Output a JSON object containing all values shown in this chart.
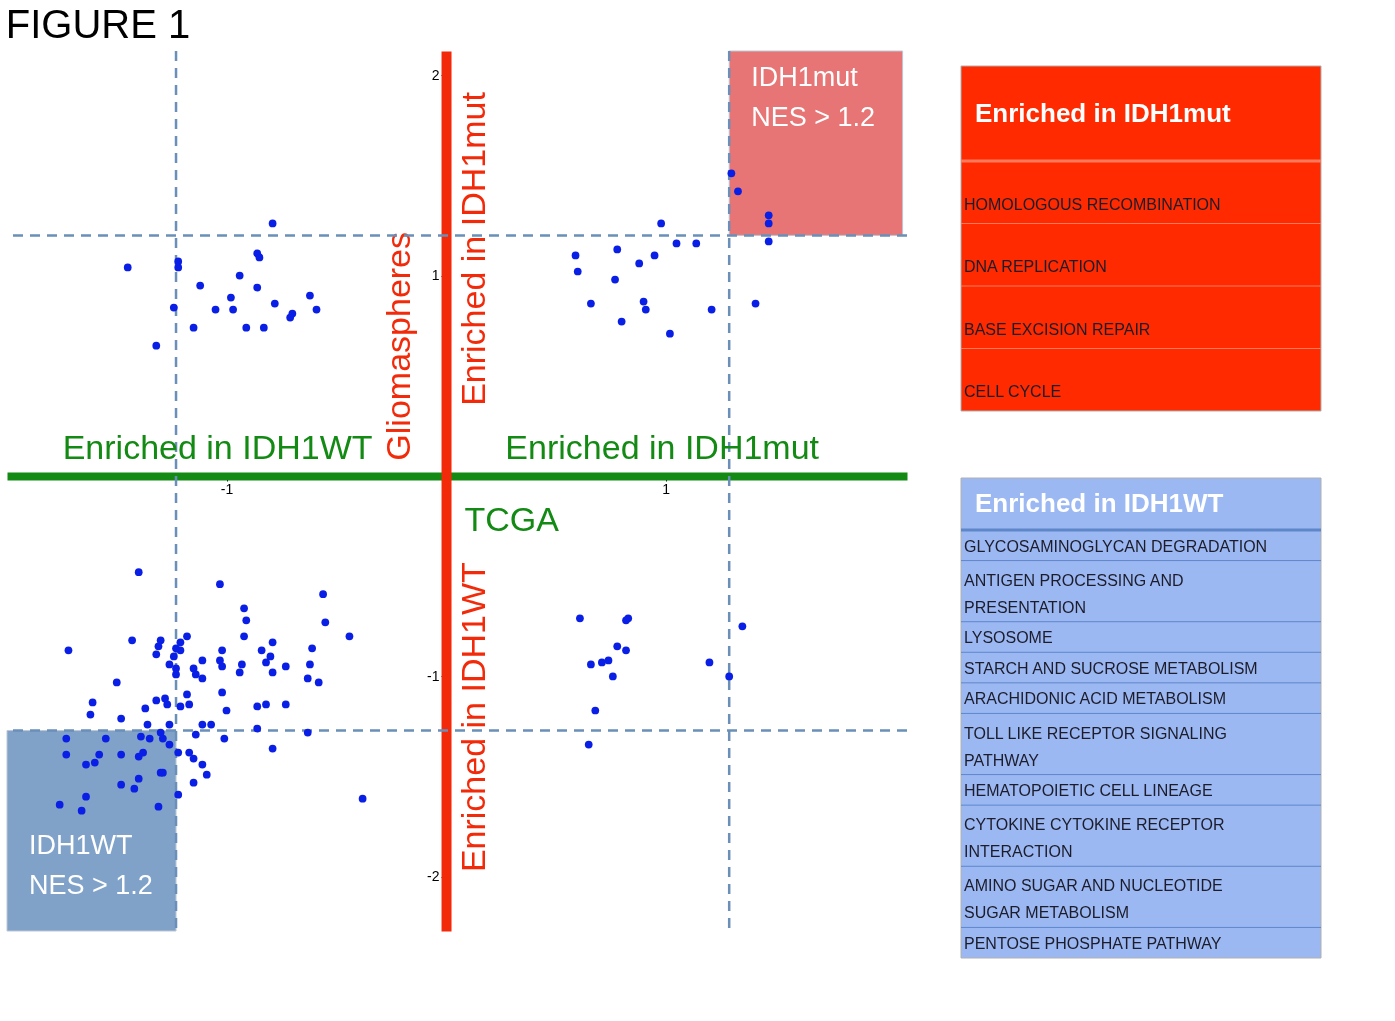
{
  "chart_data": [
    {
      "type": "scatter",
      "title": "FIGURE 1",
      "xlabel": "TCGA",
      "ylabel": "Gliomaspheres",
      "xlim": [
        -2.0,
        2.1
      ],
      "ylim": [
        -2.27,
        2.12
      ],
      "xticks": [
        -1,
        1
      ],
      "yticks": [
        2,
        1,
        -1,
        -2
      ],
      "marker": "circle",
      "series": [
        {
          "color": "#0a1fe6",
          "x": [
            -0.79,
            -0.86,
            -0.85,
            -1.45,
            -1.22,
            -1.22,
            -0.94,
            -1.12,
            -0.86,
            -0.98,
            -0.62,
            -1.24,
            -1.05,
            -0.97,
            -0.78,
            -0.59,
            -0.7,
            -0.71,
            -1.15,
            -0.91,
            -0.83,
            -1.32
          ],
          "values": [
            1.26,
            1.11,
            1.09,
            1.04,
            1.07,
            1.04,
            1.0,
            0.95,
            0.94,
            0.89,
            0.9,
            0.84,
            0.83,
            0.83,
            0.86,
            0.83,
            0.81,
            0.79,
            0.74,
            0.74,
            0.74,
            0.65
          ]
        },
        {
          "color": "#0a1fe6",
          "x": [
            1.3,
            1.33,
            1.47,
            1.47,
            0.98,
            1.47,
            1.05,
            1.14,
            0.59,
            0.78,
            0.88,
            0.95,
            0.6,
            0.77,
            0.66,
            0.9,
            0.91,
            1.41,
            1.21,
            0.8,
            1.02
          ],
          "values": [
            1.51,
            1.42,
            1.3,
            1.26,
            1.26,
            1.17,
            1.16,
            1.16,
            1.1,
            1.13,
            1.06,
            1.1,
            1.02,
            0.98,
            0.86,
            0.87,
            0.83,
            0.86,
            0.83,
            0.77,
            0.71
          ]
        },
        {
          "color": "#0a1fe6",
          "x": [
            0.61,
            0.82,
            0.83,
            1.35,
            0.78,
            0.82,
            0.66,
            0.71,
            0.74,
            1.2,
            0.76,
            1.29,
            0.68,
            0.65
          ],
          "values": [
            -0.71,
            -0.72,
            -0.71,
            -0.75,
            -0.85,
            -0.87,
            -0.94,
            -0.93,
            -0.92,
            -0.93,
            -1.0,
            -1.0,
            -1.17,
            -1.34
          ]
        },
        {
          "color": "#0a1fe6",
          "x": [
            -1.4,
            -1.03,
            -0.56,
            -0.92,
            -0.91,
            -0.55,
            -0.92,
            -0.44,
            -1.72,
            -1.43,
            -1.3,
            -1.18,
            -1.21,
            -1.31,
            -1.32,
            -1.23,
            -1.21,
            -1.24,
            -1.26,
            -1.02,
            -0.84,
            -0.79,
            -0.61,
            -1.11,
            -1.03,
            -1.02,
            -0.93,
            -0.94,
            -0.8,
            -0.82,
            -0.73,
            -0.79,
            -0.62,
            -0.63,
            -0.58,
            -1.23,
            -1.23,
            -1.15,
            -1.14,
            -1.11,
            -1.5,
            -1.02,
            -1.18,
            -1.61,
            -1.62,
            -1.48,
            -1.37,
            -1.32,
            -1.28,
            -1.27,
            -1.21,
            -1.17,
            -1.0,
            -0.86,
            -0.82,
            -0.73,
            -1.36,
            -1.26,
            -1.11,
            -1.07,
            -0.86,
            -0.63,
            -1.14,
            -1.01,
            -1.73,
            -1.55,
            -1.39,
            -1.35,
            -1.3,
            -1.29,
            -1.26,
            -0.79,
            -1.22,
            -1.17,
            -1.15,
            -1.73,
            -1.58,
            -1.6,
            -1.64,
            -1.48,
            -1.4,
            -1.38,
            -1.11,
            -1.09,
            -1.3,
            -1.29,
            -1.4,
            -1.48,
            -1.42,
            -1.15,
            -1.64,
            -1.22,
            -1.76,
            -1.66,
            -1.31,
            -0.38
          ],
          "values": [
            -0.48,
            -0.54,
            -0.59,
            -0.66,
            -0.72,
            -0.73,
            -0.8,
            -0.8,
            -0.87,
            -0.82,
            -0.82,
            -0.8,
            -0.83,
            -0.85,
            -0.89,
            -0.86,
            -0.87,
            -0.9,
            -0.94,
            -0.87,
            -0.87,
            -0.83,
            -0.86,
            -0.92,
            -0.92,
            -0.95,
            -0.94,
            -0.98,
            -0.9,
            -0.93,
            -0.95,
            -0.98,
            -0.94,
            -1.01,
            -1.03,
            -0.96,
            -0.99,
            -0.96,
            -0.99,
            -1.01,
            -1.03,
            -1.08,
            -1.09,
            -1.13,
            -1.19,
            -1.21,
            -1.16,
            -1.12,
            -1.11,
            -1.14,
            -1.15,
            -1.14,
            -1.17,
            -1.15,
            -1.14,
            -1.14,
            -1.24,
            -1.24,
            -1.24,
            -1.24,
            -1.26,
            -1.28,
            -1.29,
            -1.31,
            -1.31,
            -1.31,
            -1.3,
            -1.31,
            -1.28,
            -1.31,
            -1.34,
            -1.36,
            -1.38,
            -1.38,
            -1.41,
            -1.39,
            -1.39,
            -1.43,
            -1.44,
            -1.39,
            -1.4,
            -1.38,
            -1.44,
            -1.49,
            -1.48,
            -1.48,
            -1.51,
            -1.54,
            -1.56,
            -1.53,
            -1.6,
            -1.59,
            -1.64,
            -1.67,
            -1.65,
            -1.61
          ]
        }
      ],
      "ref_lines": [
        {
          "axis": "x",
          "value": -1.23,
          "color": "#6a8fb8",
          "line_style": "dashed"
        },
        {
          "axis": "x",
          "value": 1.29,
          "color": "#6a8fb8",
          "line_style": "dashed"
        },
        {
          "axis": "y",
          "value": 1.2,
          "color": "#6a8fb8",
          "line_style": "dashed"
        },
        {
          "axis": "y",
          "value": -1.27,
          "color": "#6a8fb8",
          "line_style": "dashed"
        }
      ],
      "bands": [
        {
          "axis": "x",
          "from": 1.29,
          "to": 2.08,
          "label": "IDH1mut\nNES > 1.2",
          "color": "#e24f4f"
        },
        {
          "axis": "x",
          "from": -2.0,
          "to": -1.23,
          "label": "IDH1WT\nNES > 1.2",
          "color": "#5d88ba"
        }
      ],
      "annotations": [
        "Enriched in IDH1WT",
        "Enriched in IDH1mut",
        "Enriched in IDH1mut",
        "Enriched in IDH1WT"
      ]
    },
    {
      "type": "other",
      "title": "Enriched in IDH1mut",
      "colors": [
        "#ff2a00",
        "#ff7a5c"
      ],
      "annotations": [
        "HOMOLOGOUS RECOMBINATION",
        "DNA REPLICATION",
        "BASE EXCISION REPAIR",
        "CELL CYCLE"
      ]
    },
    {
      "type": "other",
      "title": "Enriched in IDH1WT",
      "colors": [
        "#9bb8f3",
        "#5f86c9"
      ],
      "annotations": [
        "GLYCOSAMINOGLYCAN DEGRADATION",
        "ANTIGEN PROCESSING AND PRESENTATION",
        "LYSOSOME",
        "STARCH AND SUCROSE METABOLISM",
        "ARACHIDONIC ACID METABOLISM",
        "TOLL LIKE RECEPTOR SIGNALING PATHWAY",
        "HEMATOPOIETIC CELL LINEAGE",
        "CYTOKINE CYTOKINE RECEPTOR INTERACTION",
        "AMINO SUGAR AND NUCLEOTIDE SUGAR METABOLISM",
        "PENTOSE PHOSPHATE PATHWAY"
      ]
    }
  ]
}
